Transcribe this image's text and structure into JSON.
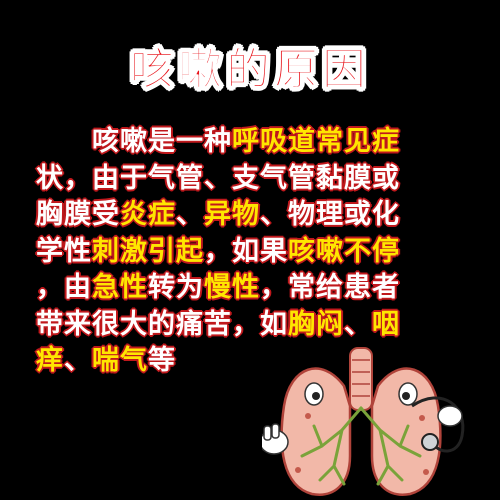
{
  "title": "咳嗽的原因",
  "lines": [
    [
      {
        "t": "咳嗽是一种",
        "c": "white"
      },
      {
        "t": "呼吸道常见症",
        "c": "yellow"
      }
    ],
    [
      {
        "t": "状，由于气管、支气管黏膜或",
        "c": "white"
      }
    ],
    [
      {
        "t": "胸膜受",
        "c": "white"
      },
      {
        "t": "炎症",
        "c": "yellow"
      },
      {
        "t": "、",
        "c": "white"
      },
      {
        "t": "异物",
        "c": "yellow"
      },
      {
        "t": "、物理或化",
        "c": "white"
      }
    ],
    [
      {
        "t": "学性",
        "c": "white"
      },
      {
        "t": "刺激引起",
        "c": "yellow"
      },
      {
        "t": "，如果",
        "c": "white"
      },
      {
        "t": "咳嗽不停",
        "c": "yellow"
      }
    ],
    [
      {
        "t": "，由",
        "c": "white"
      },
      {
        "t": "急性",
        "c": "yellow"
      },
      {
        "t": "转为",
        "c": "white"
      },
      {
        "t": "慢性",
        "c": "yellow"
      },
      {
        "t": "，常给患者",
        "c": "white"
      }
    ],
    [
      {
        "t": "带来很大的痛苦，如",
        "c": "white"
      },
      {
        "t": "胸闷",
        "c": "yellow"
      },
      {
        "t": "、",
        "c": "white"
      },
      {
        "t": "咽",
        "c": "yellow"
      }
    ],
    [
      {
        "t": "痒",
        "c": "yellow"
      },
      {
        "t": "、",
        "c": "white"
      },
      {
        "t": "喘气",
        "c": "yellow"
      },
      {
        "t": "等",
        "c": "white"
      }
    ]
  ],
  "colors": {
    "background": "#000000",
    "title_fill": "#e8141b",
    "text_white": "#ffffff",
    "text_yellow": "#ffe600",
    "text_outline": "#c0181c",
    "lung_fill": "#f2b8a8",
    "lung_outline": "#b0433a"
  },
  "illustration": {
    "icon": "cartoon-lungs-icon"
  }
}
